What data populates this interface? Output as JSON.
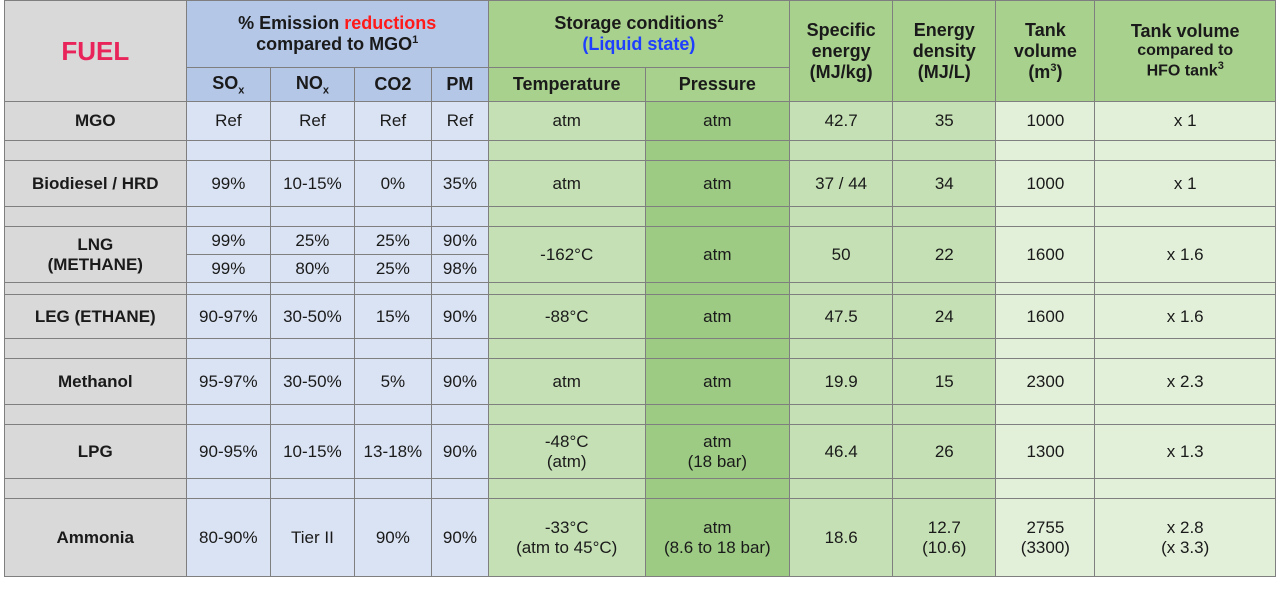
{
  "header": {
    "fuel": "FUEL",
    "emission_pre": "% Emission ",
    "emission_red": "reductions",
    "emission_line2": "compared to MGO",
    "emission_sup": "1",
    "storage": "Storage conditions",
    "storage_sup": "2",
    "storage_sub": "(Liquid state)",
    "specific_energy": [
      "Specific",
      "energy",
      "(MJ/kg)"
    ],
    "energy_density": [
      "Energy",
      "density",
      "(MJ/L)"
    ],
    "tank_volume": [
      "Tank",
      "volume",
      "(m",
      "3",
      ")"
    ],
    "tank_compare": [
      "Tank volume",
      "compared to",
      "HFO tank",
      "3"
    ],
    "sox": "SO",
    "sox_sub": "x",
    "nox": "NO",
    "nox_sub": "x",
    "co2": "CO2",
    "pm": "PM",
    "temperature": "Temperature",
    "pressure": "Pressure"
  },
  "rows": {
    "mgo": {
      "name": "MGO",
      "sox": "Ref",
      "nox": "Ref",
      "co2": "Ref",
      "pm": "Ref",
      "temp": "atm",
      "pres": "atm",
      "se": "42.7",
      "ed": "35",
      "tv": "1000",
      "tc": "x 1"
    },
    "bio": {
      "name": "Biodiesel / HRD",
      "sox": "99%",
      "nox": "10-15%",
      "co2": "0%",
      "pm": "35%",
      "temp": "atm",
      "pres": "atm",
      "se": "37 / 44",
      "ed": "34",
      "tv": "1000",
      "tc": "x 1"
    },
    "lng": {
      "name1": "LNG",
      "name2": "(METHANE)",
      "sox1": "99%",
      "nox1": "25%",
      "co21": "25%",
      "pm1": "90%",
      "sox2": "99%",
      "nox2": "80%",
      "co22": "25%",
      "pm2": "98%",
      "temp": "-162°C",
      "pres": "atm",
      "se": "50",
      "ed": "22",
      "tv": "1600",
      "tc": "x 1.6"
    },
    "leg": {
      "name": "LEG (ETHANE)",
      "sox": "90-97%",
      "nox": "30-50%",
      "co2": "15%",
      "pm": "90%",
      "temp": "-88°C",
      "pres": "atm",
      "se": "47.5",
      "ed": "24",
      "tv": "1600",
      "tc": "x 1.6"
    },
    "meth": {
      "name": "Methanol",
      "sox": "95-97%",
      "nox": "30-50%",
      "co2": "5%",
      "pm": "90%",
      "temp": "atm",
      "pres": "atm",
      "se": "19.9",
      "ed": "15",
      "tv": "2300",
      "tc": "x 2.3"
    },
    "lpg": {
      "name": "LPG",
      "sox": "90-95%",
      "nox": "10-15%",
      "co2": "13-18%",
      "pm": "90%",
      "temp1": "-48°C",
      "temp2": "(atm)",
      "pres1": "atm",
      "pres2": "(18 bar)",
      "se": "46.4",
      "ed": "26",
      "tv": "1300",
      "tc": "x 1.3"
    },
    "amm": {
      "name": "Ammonia",
      "sox": "80-90%",
      "nox": "Tier II",
      "co2": "90%",
      "pm": "90%",
      "temp1": "-33°C",
      "temp2": "(atm to 45°C)",
      "pres1": "atm",
      "pres2": "(8.6 to 18 bar)",
      "se": "18.6",
      "ed1": "12.7",
      "ed2": "(10.6)",
      "tv1": "2755",
      "tv2": "(3300)",
      "tc1": "x 2.8",
      "tc2": "(x 3.3)"
    }
  }
}
